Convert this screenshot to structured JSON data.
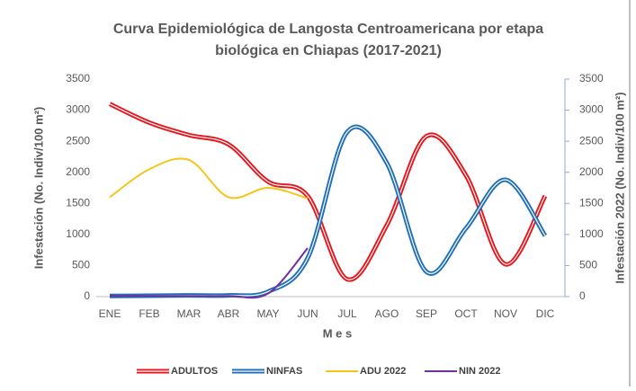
{
  "chart_data": {
    "type": "line",
    "title": [
      "Curva Epidemiológica de Langosta Centroamericana por etapa",
      "biológica en Chiapas (2017-2021)"
    ],
    "x_label": "M e s",
    "y_label": "Infestación (No. Indiv/100 m²)",
    "y2_label": "Infestación 2022 (No. Indiv/100 m²)",
    "categories": [
      "ENE",
      "FEB",
      "MAR",
      "ABR",
      "MAY",
      "JUN",
      "JUL",
      "AGO",
      "SEP",
      "OCT",
      "NOV",
      "DIC"
    ],
    "series": [
      {
        "name": "ADULTOS",
        "color": "#e8141b",
        "style": "double",
        "values": [
          3100,
          2800,
          2600,
          2450,
          1850,
          1620,
          280,
          1150,
          2580,
          1950,
          520,
          1620
        ]
      },
      {
        "name": "NINFAS",
        "color": "#1f6fb8",
        "style": "double",
        "values": [
          10,
          15,
          20,
          20,
          80,
          620,
          2650,
          2150,
          400,
          1100,
          1880,
          980
        ]
      },
      {
        "name": "ADU 2022",
        "color": "#f5c518",
        "axis": "y2",
        "values": [
          1600,
          2050,
          2200,
          1600,
          1750,
          1580,
          null,
          null,
          null,
          null,
          null,
          null
        ]
      },
      {
        "name": "NIN 2022",
        "color": "#7030a0",
        "axis": "y2",
        "values": [
          10,
          10,
          10,
          10,
          50,
          780,
          null,
          null,
          null,
          null,
          null,
          null
        ]
      }
    ],
    "ylim": [
      0,
      3500
    ],
    "yticks": [
      0,
      500,
      1000,
      1500,
      2000,
      2500,
      3000,
      3500
    ],
    "y2lim": [
      0,
      3500
    ],
    "y2ticks": [
      0,
      500,
      1000,
      1500,
      2000,
      2500,
      3000,
      3500
    ],
    "legend": "bottom"
  }
}
